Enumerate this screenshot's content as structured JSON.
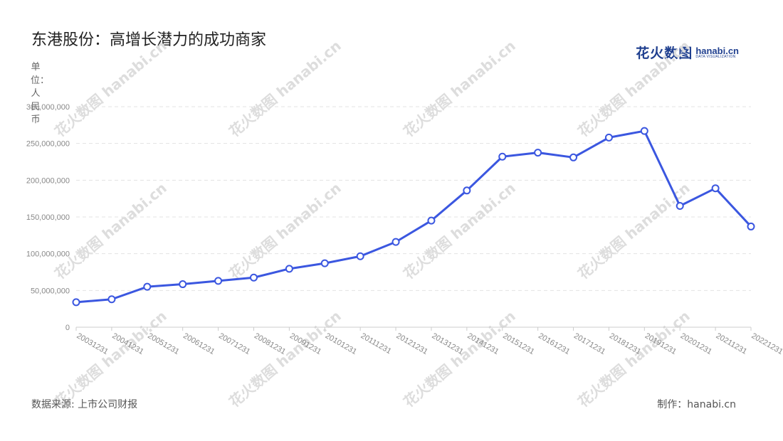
{
  "header": {
    "title": "东港股份：高增长潜力的成功商家",
    "logo_cn": "花火数图",
    "logo_en": "hanabi.cn",
    "logo_tagline": "DATA VISUALIZATION"
  },
  "footer": {
    "source": "数据来源: 上市公司财报",
    "credit": "制作：hanabi.cn"
  },
  "colors": {
    "line": "#3b57e0",
    "marker_fill": "#ffffff",
    "grid": "#e3e3e3",
    "axis": "#cccccc",
    "watermark": "#dddddd"
  },
  "chart_data": {
    "type": "line",
    "ylabel": "单位：人民币",
    "ylim": [
      0,
      300000000
    ],
    "yticks": [
      {
        "value": 0,
        "label": "0"
      },
      {
        "value": 50000000,
        "label": "50,000,000"
      },
      {
        "value": 100000000,
        "label": "100,000,000"
      },
      {
        "value": 150000000,
        "label": "150,000,000"
      },
      {
        "value": 200000000,
        "label": "200,000,000"
      },
      {
        "value": 250000000,
        "label": "250,000,000"
      },
      {
        "value": 300000000,
        "label": "300,000,000"
      }
    ],
    "grid": true,
    "categories": [
      "20031231",
      "20041231",
      "20051231",
      "20061231",
      "20071231",
      "20081231",
      "20091231",
      "20101231",
      "20111231",
      "20121231",
      "20131231",
      "20141231",
      "20151231",
      "20161231",
      "20171231",
      "20181231",
      "20191231",
      "20201231",
      "20211231",
      "20221231"
    ],
    "values": [
      34000000,
      38000000,
      55000000,
      58500000,
      63000000,
      67500000,
      79500000,
      87000000,
      96500000,
      116000000,
      145000000,
      186000000,
      232000000,
      237500000,
      231000000,
      258000000,
      267000000,
      165000000,
      189000000,
      137000000
    ]
  }
}
